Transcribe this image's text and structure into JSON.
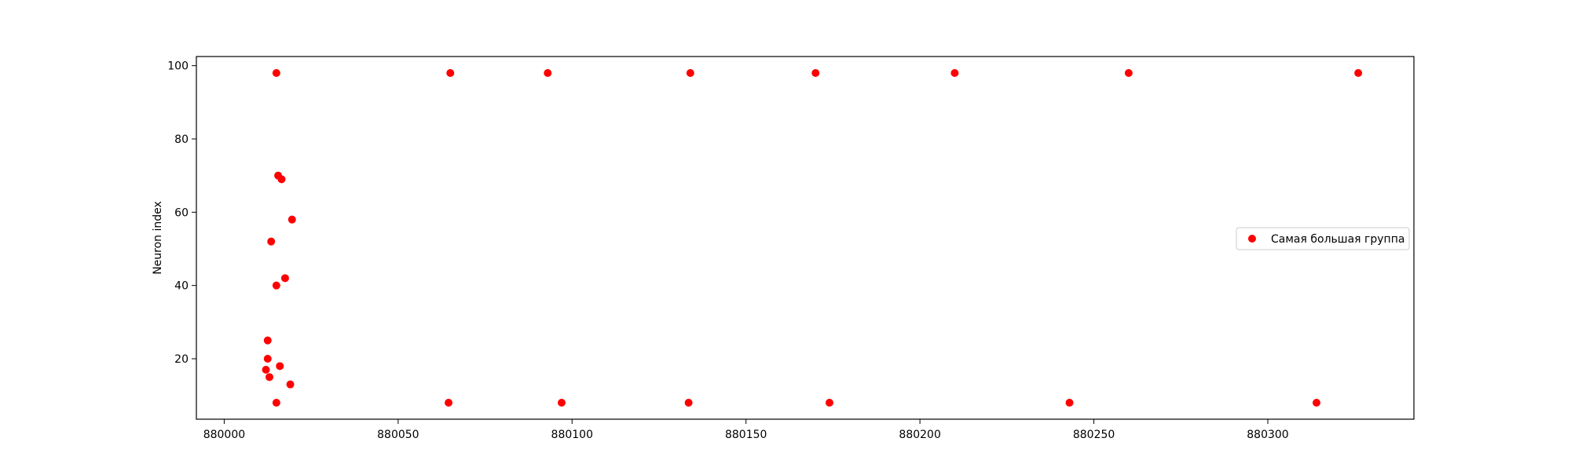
{
  "chart_data": {
    "type": "scatter",
    "title": "",
    "xlabel": "",
    "ylabel": "Neuron index",
    "xlim": [
      879992,
      880342
    ],
    "ylim": [
      3.5,
      102.5
    ],
    "xticks": [
      880000,
      880050,
      880100,
      880150,
      880200,
      880250,
      880300
    ],
    "yticks": [
      20,
      40,
      60,
      80,
      100
    ],
    "grid": false,
    "legend_position": "center-right",
    "series": [
      {
        "name": "Самая большая группа",
        "color": "#ff0000",
        "marker": "circle",
        "points": [
          {
            "x": 880015,
            "y": 98
          },
          {
            "x": 880065,
            "y": 98
          },
          {
            "x": 880093,
            "y": 98
          },
          {
            "x": 880134,
            "y": 98
          },
          {
            "x": 880170,
            "y": 98
          },
          {
            "x": 880210,
            "y": 98
          },
          {
            "x": 880260,
            "y": 98
          },
          {
            "x": 880326,
            "y": 98
          },
          {
            "x": 880015.5,
            "y": 70
          },
          {
            "x": 880016.5,
            "y": 69
          },
          {
            "x": 880019.5,
            "y": 58
          },
          {
            "x": 880013.5,
            "y": 52
          },
          {
            "x": 880017.5,
            "y": 42
          },
          {
            "x": 880015,
            "y": 40
          },
          {
            "x": 880012.5,
            "y": 25
          },
          {
            "x": 880012.5,
            "y": 20
          },
          {
            "x": 880016,
            "y": 18
          },
          {
            "x": 880012,
            "y": 17
          },
          {
            "x": 880013,
            "y": 15
          },
          {
            "x": 880019,
            "y": 13
          },
          {
            "x": 880015,
            "y": 8
          },
          {
            "x": 880064.5,
            "y": 8
          },
          {
            "x": 880097,
            "y": 8
          },
          {
            "x": 880133.5,
            "y": 8
          },
          {
            "x": 880174,
            "y": 8
          },
          {
            "x": 880243,
            "y": 8
          },
          {
            "x": 880314,
            "y": 8
          }
        ]
      }
    ]
  }
}
